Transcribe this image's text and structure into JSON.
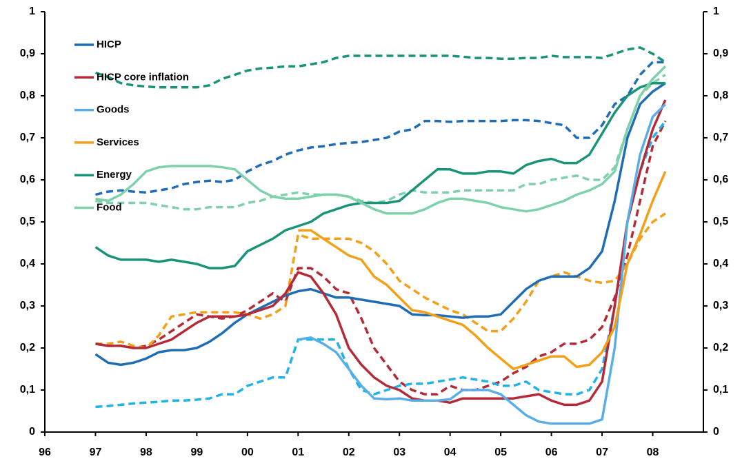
{
  "chart_data": {
    "type": "line",
    "x": [
      1997,
      1997.25,
      1997.5,
      1997.75,
      1998,
      1998.25,
      1998.5,
      1998.75,
      1999,
      1999.25,
      1999.5,
      1999.75,
      2000,
      2000.25,
      2000.5,
      2000.75,
      2001,
      2001.25,
      2001.5,
      2001.75,
      2002,
      2002.25,
      2002.5,
      2002.75,
      2003,
      2003.25,
      2003.5,
      2003.75,
      2004,
      2004.25,
      2004.5,
      2004.75,
      2005,
      2005.25,
      2005.5,
      2005.75,
      2006,
      2006.25,
      2006.5,
      2006.75,
      2007,
      2007.25,
      2007.5,
      2007.75,
      2008,
      2008.25
    ],
    "xlim": [
      1996,
      2009
    ],
    "xticks": [
      {
        "value": 1996,
        "label": "96"
      },
      {
        "value": 1997,
        "label": "97"
      },
      {
        "value": 1998,
        "label": "98"
      },
      {
        "value": 1999,
        "label": "99"
      },
      {
        "value": 2000,
        "label": "00"
      },
      {
        "value": 2001,
        "label": "01"
      },
      {
        "value": 2002,
        "label": "02"
      },
      {
        "value": 2003,
        "label": "03"
      },
      {
        "value": 2004,
        "label": "04"
      },
      {
        "value": 2005,
        "label": "05"
      },
      {
        "value": 2006,
        "label": "06"
      },
      {
        "value": 2007,
        "label": "07"
      },
      {
        "value": 2008,
        "label": "08"
      }
    ],
    "ylim": [
      0,
      1
    ],
    "yticks": [
      0,
      {
        "value": 0.1,
        "label": "0,1"
      },
      {
        "value": 0.2,
        "label": "0,2"
      },
      {
        "value": 0.3,
        "label": "0,3"
      },
      {
        "value": 0.4,
        "label": "0,4"
      },
      {
        "value": 0.5,
        "label": "0,5"
      },
      {
        "value": 0.6,
        "label": "0,6"
      },
      {
        "value": 0.7,
        "label": "0,7"
      },
      {
        "value": 0.8,
        "label": "0,8"
      },
      {
        "value": 0.9,
        "label": "0,9"
      },
      1
    ],
    "y2lim": [
      0,
      1
    ],
    "y2ticks": [
      0,
      {
        "value": 0.1,
        "label": "0,1"
      },
      {
        "value": 0.2,
        "label": "0,2"
      },
      {
        "value": 0.3,
        "label": "0,3"
      },
      {
        "value": 0.4,
        "label": "0,4"
      },
      {
        "value": 0.5,
        "label": "0,5"
      },
      {
        "value": 0.6,
        "label": "0,6"
      },
      {
        "value": 0.7,
        "label": "0,7"
      },
      {
        "value": 0.8,
        "label": "0,8"
      },
      {
        "value": 0.9,
        "label": "0,9"
      },
      1
    ],
    "legend": "upper-left",
    "series": [
      {
        "name": "HICP",
        "color": "#1f6db5",
        "values": [
          0.185,
          0.165,
          0.16,
          0.165,
          0.175,
          0.19,
          0.195,
          0.195,
          0.2,
          0.215,
          0.235,
          0.26,
          0.28,
          0.295,
          0.31,
          0.325,
          0.335,
          0.34,
          0.33,
          0.32,
          0.32,
          0.315,
          0.31,
          0.305,
          0.3,
          0.28,
          0.278,
          0.278,
          0.275,
          0.272,
          0.275,
          0.275,
          0.28,
          0.31,
          0.34,
          0.36,
          0.37,
          0.37,
          0.37,
          0.39,
          0.43,
          0.55,
          0.7,
          0.78,
          0.81,
          0.83
        ]
      },
      {
        "name": "HICP core inflation",
        "color": "#b52a37",
        "values": [
          0.21,
          0.205,
          0.205,
          0.2,
          0.2,
          0.21,
          0.22,
          0.24,
          0.26,
          0.275,
          0.275,
          0.275,
          0.28,
          0.29,
          0.3,
          0.33,
          0.38,
          0.37,
          0.33,
          0.28,
          0.2,
          0.16,
          0.13,
          0.11,
          0.1,
          0.08,
          0.075,
          0.075,
          0.07,
          0.08,
          0.08,
          0.08,
          0.08,
          0.08,
          0.085,
          0.09,
          0.075,
          0.065,
          0.065,
          0.075,
          0.12,
          0.3,
          0.5,
          0.62,
          0.72,
          0.79
        ]
      },
      {
        "name": "Goods",
        "color": "#5aaee8",
        "values": [
          null,
          null,
          null,
          null,
          null,
          null,
          null,
          null,
          null,
          null,
          null,
          null,
          null,
          null,
          null,
          null,
          0.22,
          0.225,
          0.21,
          0.19,
          0.15,
          0.11,
          0.08,
          0.078,
          0.08,
          0.075,
          0.075,
          0.075,
          0.078,
          0.1,
          0.1,
          0.1,
          0.09,
          0.065,
          0.04,
          0.025,
          0.02,
          0.02,
          0.02,
          0.02,
          0.03,
          0.2,
          0.5,
          0.66,
          0.75,
          0.78
        ]
      },
      {
        "name": "Services",
        "color": "#f3a019",
        "values": [
          null,
          null,
          null,
          null,
          null,
          null,
          null,
          null,
          null,
          null,
          null,
          null,
          null,
          null,
          null,
          null,
          0.48,
          0.48,
          0.46,
          0.44,
          0.42,
          0.41,
          0.37,
          0.35,
          0.32,
          0.29,
          0.285,
          0.275,
          0.265,
          0.255,
          0.23,
          0.2,
          0.175,
          0.15,
          0.16,
          0.17,
          0.18,
          0.18,
          0.155,
          0.16,
          0.19,
          0.25,
          0.4,
          0.47,
          0.55,
          0.62
        ]
      },
      {
        "name": "Energy",
        "color": "#1a9479",
        "values": [
          0.44,
          0.42,
          0.41,
          0.41,
          0.41,
          0.405,
          0.41,
          0.405,
          0.4,
          0.39,
          0.39,
          0.395,
          0.43,
          0.445,
          0.46,
          0.48,
          0.49,
          0.5,
          0.52,
          0.53,
          0.54,
          0.545,
          0.545,
          0.545,
          0.55,
          0.575,
          0.6,
          0.625,
          0.625,
          0.615,
          0.615,
          0.62,
          0.62,
          0.615,
          0.635,
          0.645,
          0.65,
          0.64,
          0.64,
          0.66,
          0.71,
          0.76,
          0.8,
          0.82,
          0.83,
          0.83
        ]
      },
      {
        "name": "Food",
        "color": "#7fd1ab",
        "values": [
          0.555,
          0.55,
          0.565,
          0.59,
          0.62,
          0.63,
          0.633,
          0.633,
          0.633,
          0.633,
          0.63,
          0.625,
          0.6,
          0.575,
          0.56,
          0.555,
          0.555,
          0.56,
          0.565,
          0.565,
          0.56,
          0.545,
          0.53,
          0.52,
          0.52,
          0.52,
          0.53,
          0.545,
          0.555,
          0.555,
          0.55,
          0.545,
          0.535,
          0.53,
          0.525,
          0.53,
          0.54,
          0.55,
          0.565,
          0.575,
          0.59,
          0.62,
          0.72,
          0.8,
          0.84,
          0.87
        ]
      },
      {
        "color": "#1f6db5",
        "dashed": true,
        "values": [
          0.565,
          0.572,
          0.575,
          0.572,
          0.57,
          0.575,
          0.58,
          0.59,
          0.595,
          0.598,
          0.595,
          0.6,
          0.62,
          0.635,
          0.645,
          0.66,
          0.67,
          0.677,
          0.68,
          0.685,
          0.688,
          0.69,
          0.695,
          0.7,
          0.715,
          0.72,
          0.74,
          0.74,
          0.738,
          0.74,
          0.74,
          0.74,
          0.74,
          0.742,
          0.742,
          0.74,
          0.735,
          0.73,
          0.7,
          0.7,
          0.73,
          0.78,
          0.8,
          0.85,
          0.88,
          0.88
        ]
      },
      {
        "color": "#b52a37",
        "dashed": true,
        "values": [
          0.21,
          0.205,
          0.205,
          0.2,
          0.205,
          0.22,
          0.24,
          0.26,
          0.28,
          0.275,
          0.27,
          0.275,
          0.29,
          0.31,
          0.33,
          0.31,
          0.39,
          0.39,
          0.37,
          0.34,
          0.33,
          0.27,
          0.2,
          0.16,
          0.12,
          0.1,
          0.09,
          0.09,
          0.11,
          0.1,
          0.1,
          0.11,
          0.12,
          0.14,
          0.155,
          0.18,
          0.19,
          0.21,
          0.21,
          0.22,
          0.25,
          0.32,
          0.42,
          0.55,
          0.68,
          0.74
        ]
      },
      {
        "color": "#22b3e6",
        "dashed": true,
        "values": [
          0.06,
          0.062,
          0.065,
          0.068,
          0.07,
          0.072,
          0.075,
          0.075,
          0.077,
          0.08,
          0.09,
          0.09,
          0.11,
          0.12,
          0.13,
          0.13,
          0.22,
          0.22,
          0.22,
          0.22,
          0.15,
          0.1,
          0.09,
          0.1,
          0.11,
          0.115,
          0.115,
          0.12,
          0.125,
          0.13,
          0.125,
          0.12,
          0.11,
          0.11,
          0.12,
          0.1,
          0.095,
          0.09,
          0.09,
          0.1,
          0.15,
          0.3,
          0.5,
          0.62,
          0.7,
          0.74
        ]
      },
      {
        "color": "#f3a019",
        "dashed": true,
        "values": [
          0.21,
          0.21,
          0.215,
          0.205,
          0.2,
          0.23,
          0.275,
          0.28,
          0.285,
          0.285,
          0.285,
          0.285,
          0.28,
          0.27,
          0.28,
          0.3,
          0.47,
          0.46,
          0.46,
          0.46,
          0.46,
          0.45,
          0.43,
          0.4,
          0.36,
          0.34,
          0.32,
          0.305,
          0.29,
          0.28,
          0.26,
          0.24,
          0.24,
          0.27,
          0.31,
          0.36,
          0.37,
          0.38,
          0.37,
          0.36,
          0.355,
          0.36,
          0.4,
          0.46,
          0.5,
          0.52
        ]
      },
      {
        "color": "#1a9479",
        "dashed": true,
        "values": [
          0.855,
          0.845,
          0.83,
          0.825,
          0.822,
          0.82,
          0.82,
          0.82,
          0.82,
          0.825,
          0.84,
          0.85,
          0.86,
          0.865,
          0.867,
          0.87,
          0.87,
          0.875,
          0.88,
          0.89,
          0.895,
          0.895,
          0.895,
          0.895,
          0.895,
          0.895,
          0.895,
          0.895,
          0.895,
          0.893,
          0.89,
          0.89,
          0.888,
          0.888,
          0.89,
          0.89,
          0.895,
          0.892,
          0.892,
          0.892,
          0.89,
          0.9,
          0.91,
          0.915,
          0.9,
          0.88
        ]
      },
      {
        "color": "#7fd1ab",
        "dashed": true,
        "values": [
          0.55,
          0.545,
          0.545,
          0.545,
          0.545,
          0.54,
          0.535,
          0.53,
          0.53,
          0.535,
          0.535,
          0.535,
          0.545,
          0.55,
          0.56,
          0.565,
          0.57,
          0.565,
          0.565,
          0.565,
          0.56,
          0.55,
          0.545,
          0.55,
          0.565,
          0.575,
          0.57,
          0.57,
          0.57,
          0.575,
          0.575,
          0.575,
          0.575,
          0.575,
          0.59,
          0.59,
          0.6,
          0.605,
          0.61,
          0.6,
          0.6,
          0.63,
          0.72,
          0.8,
          0.83,
          0.85
        ]
      }
    ]
  }
}
